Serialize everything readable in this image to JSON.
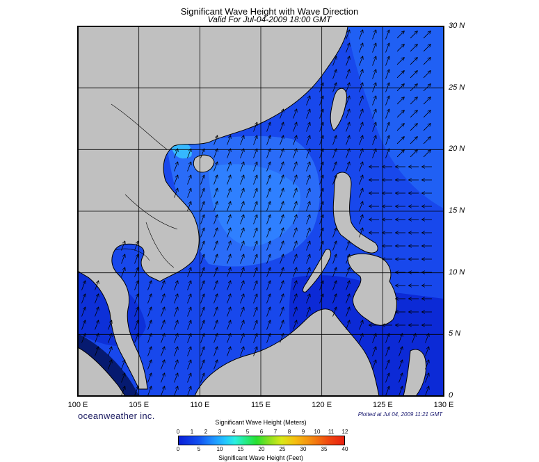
{
  "title": "Significant Wave Height with Wave Direction",
  "subtitle": "Valid For Jul-04-2009 18:00 GMT",
  "lat_labels": [
    "30 N",
    "25 N",
    "20 N",
    "15 N",
    "10 N",
    "5 N",
    "0"
  ],
  "lon_labels": [
    "100 E",
    "105 E",
    "110 E",
    "115 E",
    "120 E",
    "125 E",
    "130 E"
  ],
  "brand": "oceanweather inc.",
  "plotted": "Plotted at Jul 04, 2009 11:21 GMT",
  "legend": {
    "title_m": "Significant Wave Height (Meters)",
    "title_ft": "Significant Wave Height (Feet)",
    "ticks_m": [
      "0",
      "1",
      "2",
      "3",
      "4",
      "5",
      "6",
      "7",
      "8",
      "9",
      "10",
      "11",
      "12"
    ],
    "ticks_ft": [
      "0",
      "5",
      "10",
      "15",
      "20",
      "25",
      "30",
      "35",
      "40"
    ]
  },
  "colors": {
    "land": "#c0c0c0",
    "water_deep": "#0a1fd8",
    "water_mid": "#1e4ff0",
    "water_light": "#2a82ff",
    "coast": "#000000"
  }
}
